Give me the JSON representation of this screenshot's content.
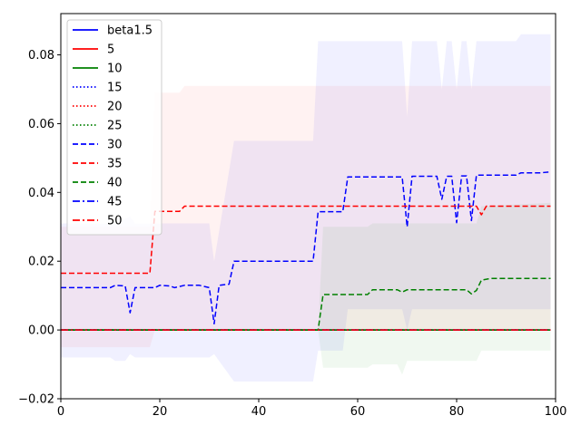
{
  "chart_data": {
    "type": "line",
    "title": "",
    "xlabel": "",
    "ylabel": "",
    "xlim": [
      0,
      100
    ],
    "ylim": [
      -0.02,
      0.092
    ],
    "xticks": [
      "0",
      "20",
      "40",
      "60",
      "80",
      "100"
    ],
    "yticks": [
      "−0.02",
      "0.00",
      "0.02",
      "0.04",
      "0.06",
      "0.08"
    ],
    "grid": false,
    "legend_position": "upper-left",
    "series": [
      {
        "name": "beta1.5",
        "color": "#0000ff",
        "style": "solid",
        "points": [
          [
            0,
            0
          ],
          [
            99,
            0
          ]
        ]
      },
      {
        "name": "5",
        "color": "#ff0000",
        "style": "solid",
        "points": [
          [
            0,
            0
          ],
          [
            99,
            0
          ]
        ]
      },
      {
        "name": "10",
        "color": "#008000",
        "style": "solid",
        "points": [
          [
            0,
            0
          ],
          [
            99,
            0
          ]
        ]
      },
      {
        "name": "15",
        "color": "#0000ff",
        "style": "dotted",
        "points": [
          [
            0,
            0
          ],
          [
            99,
            0
          ]
        ]
      },
      {
        "name": "20",
        "color": "#ff0000",
        "style": "dotted",
        "points": [
          [
            0,
            0
          ],
          [
            99,
            0
          ]
        ]
      },
      {
        "name": "25",
        "color": "#008000",
        "style": "dotted",
        "points": [
          [
            0,
            0
          ],
          [
            99,
            0
          ]
        ]
      },
      {
        "name": "30",
        "color": "#0000ff",
        "style": "dashed",
        "points": [
          [
            0,
            0.0123
          ],
          [
            10,
            0.0123
          ],
          [
            11,
            0.013
          ],
          [
            13,
            0.0128
          ],
          [
            14,
            0.005
          ],
          [
            15,
            0.0123
          ],
          [
            19,
            0.0123
          ],
          [
            20,
            0.013
          ],
          [
            22,
            0.0128
          ],
          [
            23,
            0.0123
          ],
          [
            25,
            0.013
          ],
          [
            28,
            0.013
          ],
          [
            30,
            0.0123
          ],
          [
            31,
            0.0018
          ],
          [
            32,
            0.013
          ],
          [
            34,
            0.0133
          ],
          [
            35,
            0.02
          ],
          [
            51,
            0.02
          ],
          [
            52,
            0.0344
          ],
          [
            57,
            0.0344
          ],
          [
            58,
            0.0445
          ],
          [
            69,
            0.0445
          ],
          [
            70,
            0.03
          ],
          [
            71,
            0.0447
          ],
          [
            76,
            0.0447
          ],
          [
            77,
            0.038
          ],
          [
            78,
            0.0447
          ],
          [
            79,
            0.0447
          ],
          [
            80,
            0.0312
          ],
          [
            81,
            0.0448
          ],
          [
            82,
            0.0448
          ],
          [
            83,
            0.0318
          ],
          [
            84,
            0.045
          ],
          [
            92,
            0.045
          ],
          [
            93,
            0.0457
          ],
          [
            97,
            0.0457
          ],
          [
            99,
            0.046
          ]
        ]
      },
      {
        "name": "35",
        "color": "#ff0000",
        "style": "dashed",
        "points": [
          [
            0,
            0.0165
          ],
          [
            18,
            0.0165
          ],
          [
            19,
            0.0345
          ],
          [
            24,
            0.0345
          ],
          [
            25,
            0.036
          ],
          [
            84,
            0.036
          ],
          [
            85,
            0.0335
          ],
          [
            86,
            0.036
          ],
          [
            99,
            0.036
          ]
        ]
      },
      {
        "name": "40",
        "color": "#008000",
        "style": "dashed",
        "points": [
          [
            0,
            0
          ],
          [
            52,
            0
          ],
          [
            53,
            0.0103
          ],
          [
            62,
            0.0103
          ],
          [
            63,
            0.0117
          ],
          [
            68,
            0.0117
          ],
          [
            69,
            0.011
          ],
          [
            70,
            0.0117
          ],
          [
            82,
            0.0117
          ],
          [
            83,
            0.0105
          ],
          [
            84,
            0.0115
          ],
          [
            85,
            0.0145
          ],
          [
            87,
            0.015
          ],
          [
            99,
            0.015
          ]
        ]
      },
      {
        "name": "45",
        "color": "#0000ff",
        "style": "dashdot",
        "points": [
          [
            0,
            0
          ],
          [
            99,
            0
          ]
        ]
      },
      {
        "name": "50",
        "color": "#ff0000",
        "style": "dashdot",
        "points": [
          [
            0,
            0
          ],
          [
            99,
            0
          ]
        ]
      }
    ],
    "bands": [
      {
        "color": "#0000ff",
        "opacity": 0.06,
        "upper": [
          [
            0,
            0.031
          ],
          [
            11,
            0.031
          ],
          [
            14,
            0.033
          ],
          [
            15,
            0.031
          ],
          [
            30,
            0.031
          ],
          [
            31,
            0.02
          ],
          [
            35,
            0.055
          ],
          [
            51,
            0.055
          ],
          [
            52,
            0.084
          ],
          [
            69,
            0.084
          ],
          [
            70,
            0.062
          ],
          [
            71,
            0.084
          ],
          [
            76,
            0.084
          ],
          [
            77,
            0.07
          ],
          [
            78,
            0.084
          ],
          [
            79,
            0.084
          ],
          [
            80,
            0.07
          ],
          [
            81,
            0.084
          ],
          [
            82,
            0.084
          ],
          [
            83,
            0.07
          ],
          [
            84,
            0.084
          ],
          [
            92,
            0.084
          ],
          [
            93,
            0.086
          ],
          [
            99,
            0.086
          ]
        ],
        "lower": [
          [
            0,
            -0.008
          ],
          [
            10,
            -0.008
          ],
          [
            11,
            -0.009
          ],
          [
            13,
            -0.009
          ],
          [
            14,
            -0.007
          ],
          [
            15,
            -0.008
          ],
          [
            30,
            -0.008
          ],
          [
            31,
            -0.007
          ],
          [
            35,
            -0.015
          ],
          [
            51,
            -0.015
          ],
          [
            52,
            -0.006
          ],
          [
            57,
            -0.006
          ],
          [
            58,
            0.006
          ],
          [
            69,
            0.006
          ],
          [
            70,
            0.0
          ],
          [
            71,
            0.006
          ],
          [
            99,
            0.006
          ]
        ]
      },
      {
        "color": "#ff0000",
        "opacity": 0.05,
        "upper": [
          [
            0,
            0.03
          ],
          [
            18,
            0.03
          ],
          [
            19,
            0.069
          ],
          [
            24,
            0.069
          ],
          [
            25,
            0.071
          ],
          [
            99,
            0.071
          ]
        ],
        "lower": [
          [
            0,
            -0.005
          ],
          [
            18,
            -0.005
          ],
          [
            19,
            0.0
          ],
          [
            99,
            0.0
          ]
        ]
      },
      {
        "color": "#008000",
        "opacity": 0.06,
        "upper": [
          [
            0,
            0
          ],
          [
            52,
            0
          ],
          [
            53,
            0.03
          ],
          [
            62,
            0.03
          ],
          [
            63,
            0.031
          ],
          [
            84,
            0.031
          ],
          [
            85,
            0.036
          ],
          [
            99,
            0.037
          ]
        ],
        "lower": [
          [
            0,
            0
          ],
          [
            52,
            0
          ],
          [
            53,
            -0.011
          ],
          [
            62,
            -0.011
          ],
          [
            63,
            -0.01
          ],
          [
            68,
            -0.01
          ],
          [
            69,
            -0.013
          ],
          [
            70,
            -0.009
          ],
          [
            84,
            -0.009
          ],
          [
            85,
            -0.006
          ],
          [
            99,
            -0.006
          ]
        ]
      }
    ]
  }
}
